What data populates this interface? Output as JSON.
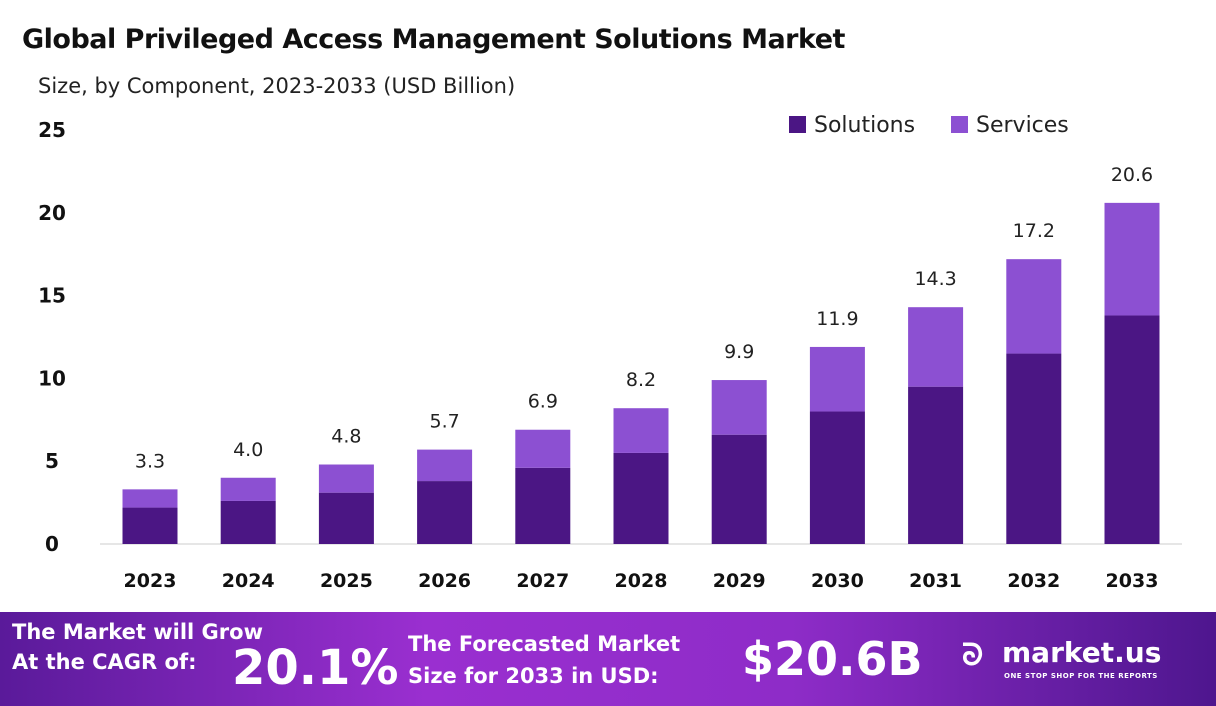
{
  "chart_data": {
    "type": "bar",
    "stacked": true,
    "title": "Global Privileged Access Management  Solutions Market",
    "subtitle": "Size, by Component, 2023-2033 (USD Billion)",
    "categories": [
      "2023",
      "2024",
      "2025",
      "2026",
      "2027",
      "2028",
      "2029",
      "2030",
      "2031",
      "2032",
      "2033"
    ],
    "series": [
      {
        "name": "Solutions",
        "color": "#4b1684",
        "values": [
          2.2,
          2.6,
          3.1,
          3.8,
          4.6,
          5.5,
          6.6,
          8.0,
          9.5,
          11.5,
          13.8
        ]
      },
      {
        "name": "Services",
        "color": "#8c50d2",
        "values": [
          1.1,
          1.4,
          1.7,
          1.9,
          2.3,
          2.7,
          3.3,
          3.9,
          4.8,
          5.7,
          6.8
        ]
      }
    ],
    "totals": [
      "3.3",
      "4.0",
      "4.8",
      "5.7",
      "6.9",
      "8.2",
      "9.9",
      "11.9",
      "14.3",
      "17.2",
      "20.6"
    ],
    "ylim": [
      0,
      25
    ],
    "yticks": [
      "0",
      "5",
      "10",
      "15",
      "20",
      "25"
    ],
    "grid": false,
    "legend": "top-right"
  },
  "banner": {
    "cagr_label_1": "The Market will Grow",
    "cagr_label_2": "At the CAGR of:",
    "cagr_value": "20.1%",
    "forecast_label_1": "The Forecasted Market",
    "forecast_label_2": "Size for 2033 in USD:",
    "forecast_value": "$20.6B",
    "logo_text": "market.us",
    "logo_tagline": "ONE STOP SHOP FOR THE REPORTS"
  }
}
